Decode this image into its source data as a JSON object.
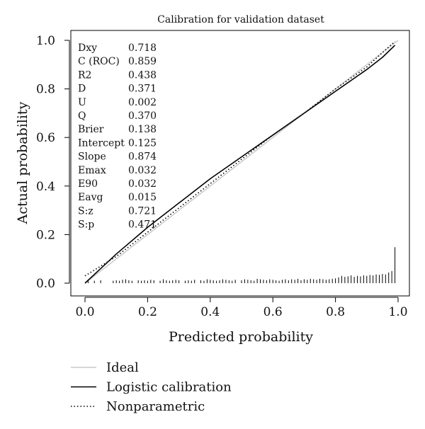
{
  "chart_data": {
    "type": "line",
    "title": "Calibration for validation dataset",
    "xlabel": "Predicted probability",
    "ylabel": "Actual probability",
    "xlim": [
      0,
      1
    ],
    "ylim": [
      0,
      1
    ],
    "x_ticks": [
      "0.0",
      "0.2",
      "0.4",
      "0.6",
      "0.8",
      "1.0"
    ],
    "y_ticks": [
      "0.0",
      "0.2",
      "0.4",
      "0.6",
      "0.8",
      "1.0"
    ],
    "grid": false,
    "legend_position": "bottom-left, below plot",
    "colors": {
      "ideal": "#c8c8c8",
      "logistic": "#000000",
      "nonparametric": "#000000",
      "spikes": "#000000"
    },
    "stats": [
      {
        "label": "Dxy",
        "value": "0.718"
      },
      {
        "label": "C (ROC)",
        "value": "0.859"
      },
      {
        "label": "R2",
        "value": "0.438"
      },
      {
        "label": "D",
        "value": "0.371"
      },
      {
        "label": "U",
        "value": "0.002"
      },
      {
        "label": "Q",
        "value": "0.370"
      },
      {
        "label": "Brier",
        "value": "0.138"
      },
      {
        "label": "Intercept",
        "value": "0.125"
      },
      {
        "label": "Slope",
        "value": "0.874"
      },
      {
        "label": "Emax",
        "value": "0.032"
      },
      {
        "label": "E90",
        "value": "0.032"
      },
      {
        "label": "Eavg",
        "value": "0.015"
      },
      {
        "label": "S:z",
        "value": "0.721"
      },
      {
        "label": "S:p",
        "value": "0.471"
      }
    ],
    "series": [
      {
        "name": "Ideal",
        "style": "solid-gray",
        "x": [
          0,
          1
        ],
        "y": [
          0,
          1
        ]
      },
      {
        "name": "Logistic calibration",
        "style": "solid",
        "x": [
          0,
          0.05,
          0.1,
          0.2,
          0.3,
          0.4,
          0.5,
          0.6,
          0.7,
          0.8,
          0.9,
          0.95,
          0.99
        ],
        "y": [
          0,
          0.06,
          0.12,
          0.23,
          0.33,
          0.43,
          0.52,
          0.61,
          0.7,
          0.79,
          0.88,
          0.93,
          0.98
        ]
      },
      {
        "name": "Nonparametric",
        "style": "dotted",
        "x": [
          0,
          0.05,
          0.1,
          0.2,
          0.3,
          0.4,
          0.5,
          0.6,
          0.7,
          0.8,
          0.9,
          0.95,
          0.99
        ],
        "y": [
          0.03,
          0.07,
          0.11,
          0.21,
          0.31,
          0.41,
          0.51,
          0.61,
          0.7,
          0.8,
          0.89,
          0.95,
          0.995
        ]
      }
    ],
    "distribution": {
      "x": [
        0.01,
        0.03,
        0.05,
        0.09,
        0.1,
        0.11,
        0.12,
        0.13,
        0.14,
        0.15,
        0.17,
        0.18,
        0.19,
        0.2,
        0.21,
        0.22,
        0.24,
        0.25,
        0.26,
        0.27,
        0.28,
        0.29,
        0.3,
        0.32,
        0.33,
        0.34,
        0.35,
        0.37,
        0.38,
        0.39,
        0.4,
        0.41,
        0.42,
        0.43,
        0.44,
        0.45,
        0.46,
        0.47,
        0.48,
        0.5,
        0.51,
        0.52,
        0.53,
        0.54,
        0.55,
        0.56,
        0.57,
        0.58,
        0.59,
        0.6,
        0.61,
        0.62,
        0.63,
        0.64,
        0.65,
        0.66,
        0.67,
        0.68,
        0.69,
        0.7,
        0.71,
        0.72,
        0.73,
        0.74,
        0.75,
        0.76,
        0.77,
        0.78,
        0.79,
        0.8,
        0.81,
        0.82,
        0.83,
        0.84,
        0.85,
        0.86,
        0.87,
        0.88,
        0.89,
        0.9,
        0.91,
        0.92,
        0.93,
        0.94,
        0.95,
        0.96,
        0.97,
        0.98,
        0.99
      ],
      "h": [
        0.012,
        0.01,
        0.012,
        0.01,
        0.012,
        0.01,
        0.014,
        0.016,
        0.012,
        0.01,
        0.012,
        0.01,
        0.012,
        0.01,
        0.014,
        0.012,
        0.01,
        0.016,
        0.012,
        0.01,
        0.012,
        0.014,
        0.012,
        0.01,
        0.012,
        0.01,
        0.014,
        0.012,
        0.01,
        0.016,
        0.014,
        0.012,
        0.01,
        0.012,
        0.016,
        0.014,
        0.012,
        0.01,
        0.014,
        0.012,
        0.016,
        0.014,
        0.012,
        0.01,
        0.018,
        0.016,
        0.014,
        0.012,
        0.016,
        0.014,
        0.012,
        0.01,
        0.014,
        0.016,
        0.012,
        0.016,
        0.014,
        0.018,
        0.012,
        0.016,
        0.014,
        0.018,
        0.016,
        0.014,
        0.018,
        0.016,
        0.014,
        0.016,
        0.018,
        0.02,
        0.024,
        0.03,
        0.026,
        0.028,
        0.032,
        0.026,
        0.03,
        0.028,
        0.032,
        0.03,
        0.034,
        0.032,
        0.036,
        0.034,
        0.038,
        0.036,
        0.044,
        0.05,
        0.148
      ]
    }
  },
  "legend": [
    {
      "label": "Ideal",
      "style": "solid-gray"
    },
    {
      "label": "Logistic calibration",
      "style": "solid"
    },
    {
      "label": "Nonparametric",
      "style": "dotted"
    }
  ]
}
